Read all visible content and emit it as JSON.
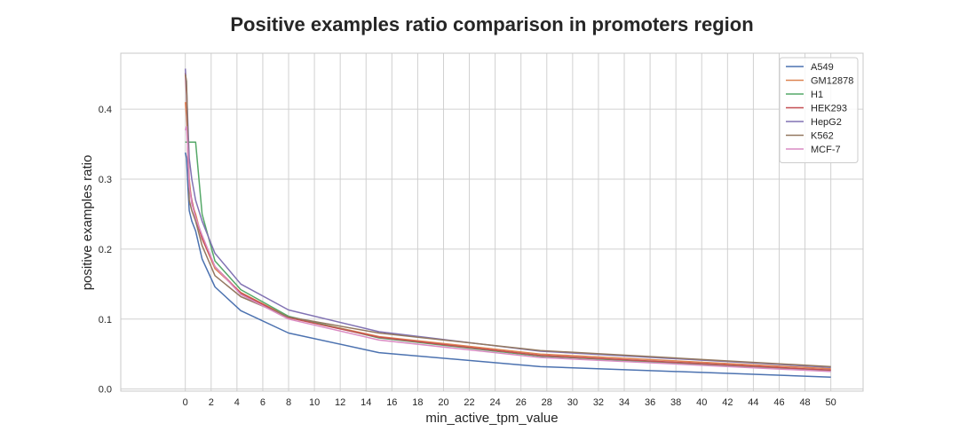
{
  "chart_data": {
    "type": "line",
    "title": "Positive examples ratio comparison in promoters region",
    "xlabel": "min_active_tpm_value",
    "ylabel": "positive examples ratio",
    "xlim": [
      -5,
      52.5
    ],
    "ylim": [
      -0.003,
      0.48
    ],
    "xticks": [
      0,
      2,
      4,
      6,
      8,
      10,
      12,
      14,
      16,
      18,
      20,
      22,
      24,
      26,
      28,
      30,
      32,
      34,
      36,
      38,
      40,
      42,
      44,
      46,
      48,
      50
    ],
    "yticks": [
      0.0,
      0.1,
      0.2,
      0.3,
      0.4
    ],
    "ytick_labels": [
      "0.0",
      "0.1",
      "0.2",
      "0.3",
      "0.4"
    ],
    "grid": true,
    "legend_position": "top-right",
    "series": [
      {
        "name": "A549",
        "color": "#4c72b0",
        "x": [
          0,
          0.1,
          0.2,
          0.3,
          0.5,
          0.8,
          1.3,
          2.3,
          4.3,
          8,
          15,
          27.5,
          50
        ],
        "y": [
          0.338,
          0.33,
          0.29,
          0.255,
          0.24,
          0.226,
          0.186,
          0.146,
          0.112,
          0.08,
          0.052,
          0.032,
          0.017
        ]
      },
      {
        "name": "GM12878",
        "color": "#dd8452",
        "x": [
          0,
          0.1,
          0.2,
          0.3,
          0.5,
          0.8,
          1.3,
          2.3,
          4.3,
          8,
          15,
          27.5,
          50
        ],
        "y": [
          0.41,
          0.39,
          0.35,
          0.3,
          0.265,
          0.25,
          0.215,
          0.172,
          0.138,
          0.103,
          0.075,
          0.05,
          0.029
        ]
      },
      {
        "name": "H1",
        "color": "#55a868",
        "x": [
          0,
          0.1,
          0.2,
          0.3,
          0.5,
          0.8,
          1.3,
          2.3,
          4.3,
          8,
          15,
          27.5,
          50
        ],
        "y": [
          0.353,
          0.353,
          0.353,
          0.353,
          0.353,
          0.353,
          0.25,
          0.183,
          0.142,
          0.104,
          0.073,
          0.047,
          0.026
        ]
      },
      {
        "name": "HEK293",
        "color": "#c44e52",
        "x": [
          0,
          0.1,
          0.2,
          0.3,
          0.5,
          0.8,
          1.3,
          2.3,
          4.3,
          8,
          15,
          27.5,
          50
        ],
        "y": [
          0.452,
          0.42,
          0.33,
          0.29,
          0.27,
          0.245,
          0.215,
          0.175,
          0.137,
          0.102,
          0.074,
          0.048,
          0.027
        ]
      },
      {
        "name": "HepG2",
        "color": "#8172b3",
        "x": [
          0,
          0.1,
          0.2,
          0.3,
          0.5,
          0.8,
          1.3,
          2.3,
          4.3,
          8,
          15,
          27.5,
          50
        ],
        "y": [
          0.458,
          0.43,
          0.38,
          0.33,
          0.3,
          0.27,
          0.24,
          0.194,
          0.15,
          0.113,
          0.082,
          0.054,
          0.031
        ]
      },
      {
        "name": "K562",
        "color": "#937860",
        "x": [
          0,
          0.1,
          0.2,
          0.3,
          0.5,
          0.8,
          1.3,
          2.3,
          4.3,
          8,
          15,
          27.5,
          50
        ],
        "y": [
          0.45,
          0.44,
          0.36,
          0.27,
          0.255,
          0.24,
          0.205,
          0.162,
          0.132,
          0.103,
          0.08,
          0.055,
          0.032
        ]
      },
      {
        "name": "MCF-7",
        "color": "#da8bc3",
        "x": [
          0,
          0.1,
          0.2,
          0.3,
          0.5,
          0.8,
          1.3,
          2.3,
          4.3,
          8,
          15,
          27.5,
          50
        ],
        "y": [
          0.37,
          0.375,
          0.34,
          0.29,
          0.265,
          0.245,
          0.22,
          0.175,
          0.135,
          0.1,
          0.07,
          0.045,
          0.025
        ]
      }
    ]
  }
}
